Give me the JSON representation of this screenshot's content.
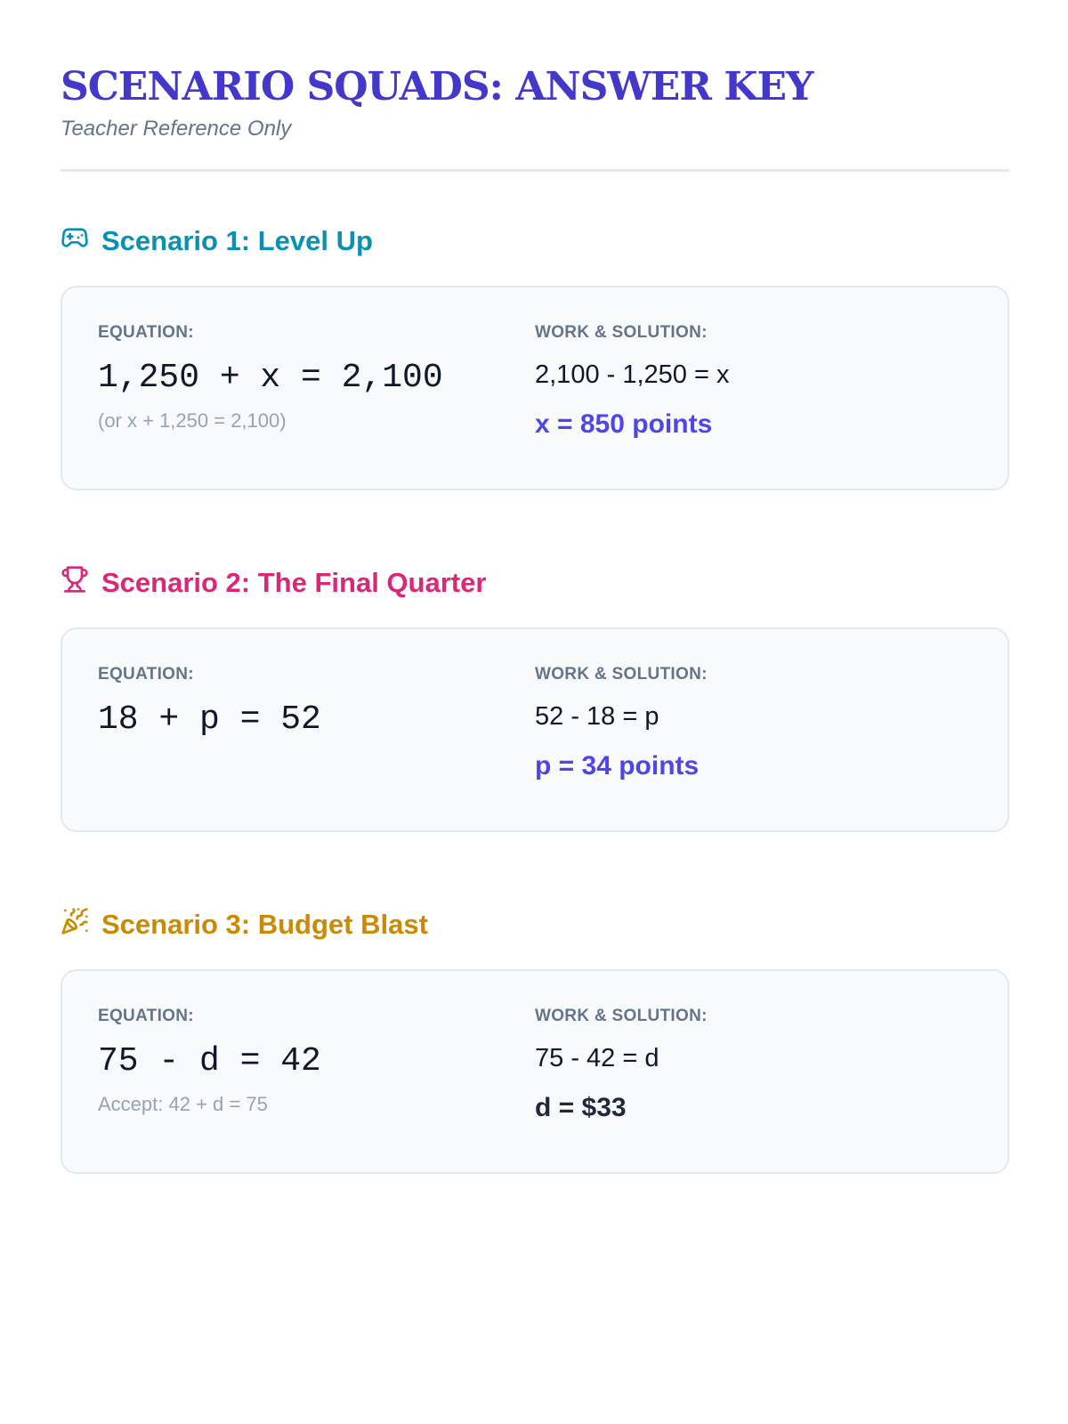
{
  "header": {
    "title": "SCENARIO SQUADS: ANSWER KEY",
    "subtitle": "Teacher Reference Only"
  },
  "labels": {
    "equation": "EQUATION:",
    "work": "WORK & SOLUTION:"
  },
  "scenarios": [
    {
      "icon": "gamepad-icon",
      "color": "#0891b2",
      "title": "Scenario 1: Level Up",
      "equation": "1,250 + x = 2,100",
      "note": "(or x + 1,250 = 2,100)",
      "work": "2,100 - 1,250 = x",
      "answer": "x = 850 points",
      "answer_color": "#4f46e5"
    },
    {
      "icon": "trophy-icon",
      "color": "#db2777",
      "title": "Scenario 2: The Final Quarter",
      "equation": "18 + p = 52",
      "note": "",
      "work": "52 - 18 = p",
      "answer": "p = 34 points",
      "answer_color": "#4f46e5"
    },
    {
      "icon": "party-popper-icon",
      "color": "#ca8a04",
      "title": "Scenario 3: Budget Blast",
      "equation": "75 - d = 42",
      "note": "Accept: 42 + d = 75",
      "work": "75 - 42 = d",
      "answer": "d = $33",
      "answer_color": "#1e293b"
    }
  ]
}
